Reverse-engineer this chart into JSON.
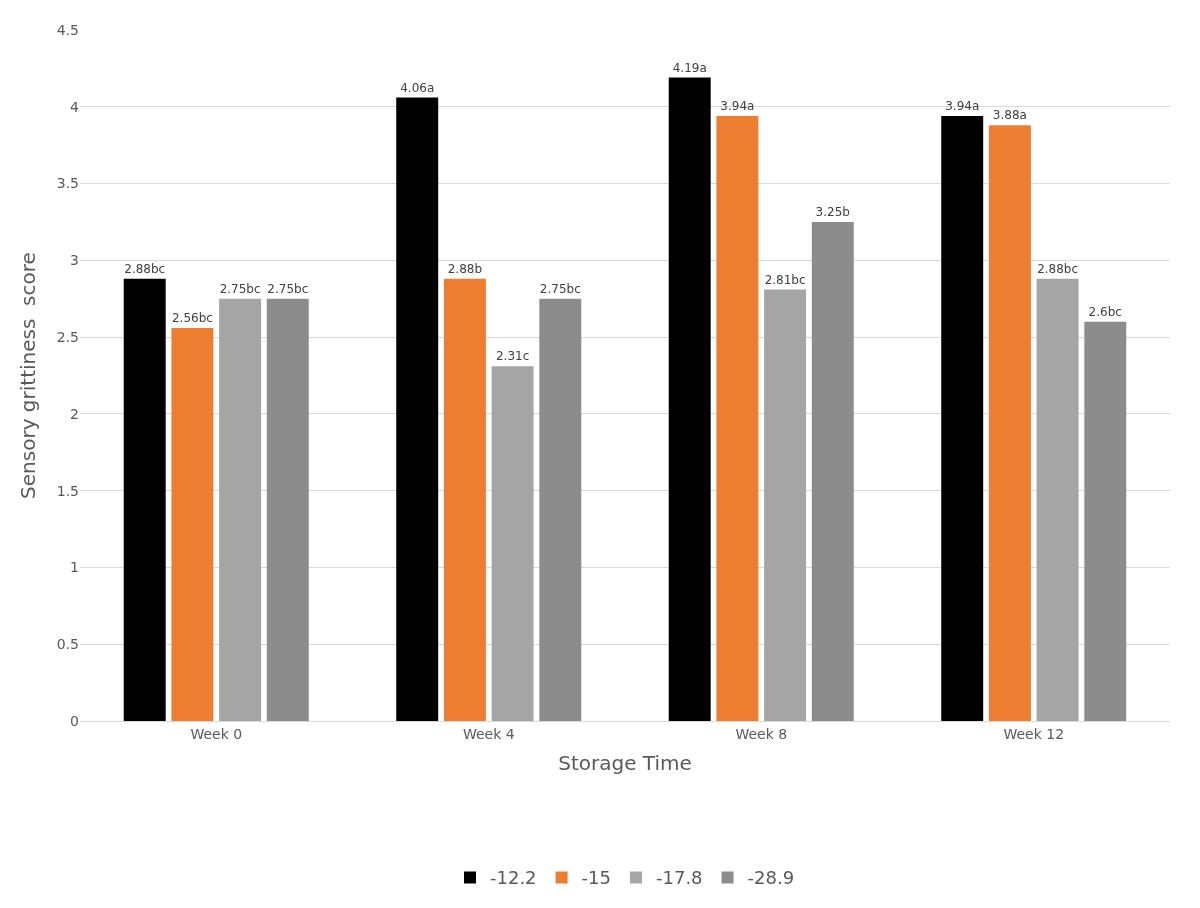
{
  "chart_data": {
    "type": "bar",
    "xlabel": "Storage Time",
    "ylabel": "Sensory grittiness  score",
    "categories": [
      "Week 0",
      "Week 4",
      "Week 8",
      "Week 12"
    ],
    "series": [
      {
        "name": "-12.2",
        "color": "#000000",
        "values": [
          2.88,
          4.06,
          4.19,
          3.94
        ],
        "value_labels": [
          "2.88bc",
          "4.06a",
          "4.19a",
          "3.94a"
        ]
      },
      {
        "name": "-15",
        "color": "#ed7d31",
        "values": [
          2.56,
          2.88,
          3.94,
          3.88
        ],
        "value_labels": [
          "2.56bc",
          "2.88b",
          "3.94a",
          "3.88a"
        ]
      },
      {
        "name": "-17.8",
        "color": "#a5a5a5",
        "values": [
          2.75,
          2.31,
          2.81,
          2.88
        ],
        "value_labels": [
          "2.75bc",
          "2.31c",
          "2.81bc",
          "2.88bc"
        ]
      },
      {
        "name": "-28.9",
        "color": "#8c8c8c",
        "values": [
          2.75,
          2.75,
          3.25,
          2.6
        ],
        "value_labels": [
          "2.75bc",
          "2.75bc",
          "3.25b",
          "2.6bc"
        ]
      }
    ],
    "ylim": [
      0,
      4.5
    ],
    "yticks": [
      0,
      0.5,
      1,
      1.5,
      2,
      2.5,
      3,
      3.5,
      4,
      4.5
    ],
    "grid": "y",
    "legend": "bottom"
  }
}
